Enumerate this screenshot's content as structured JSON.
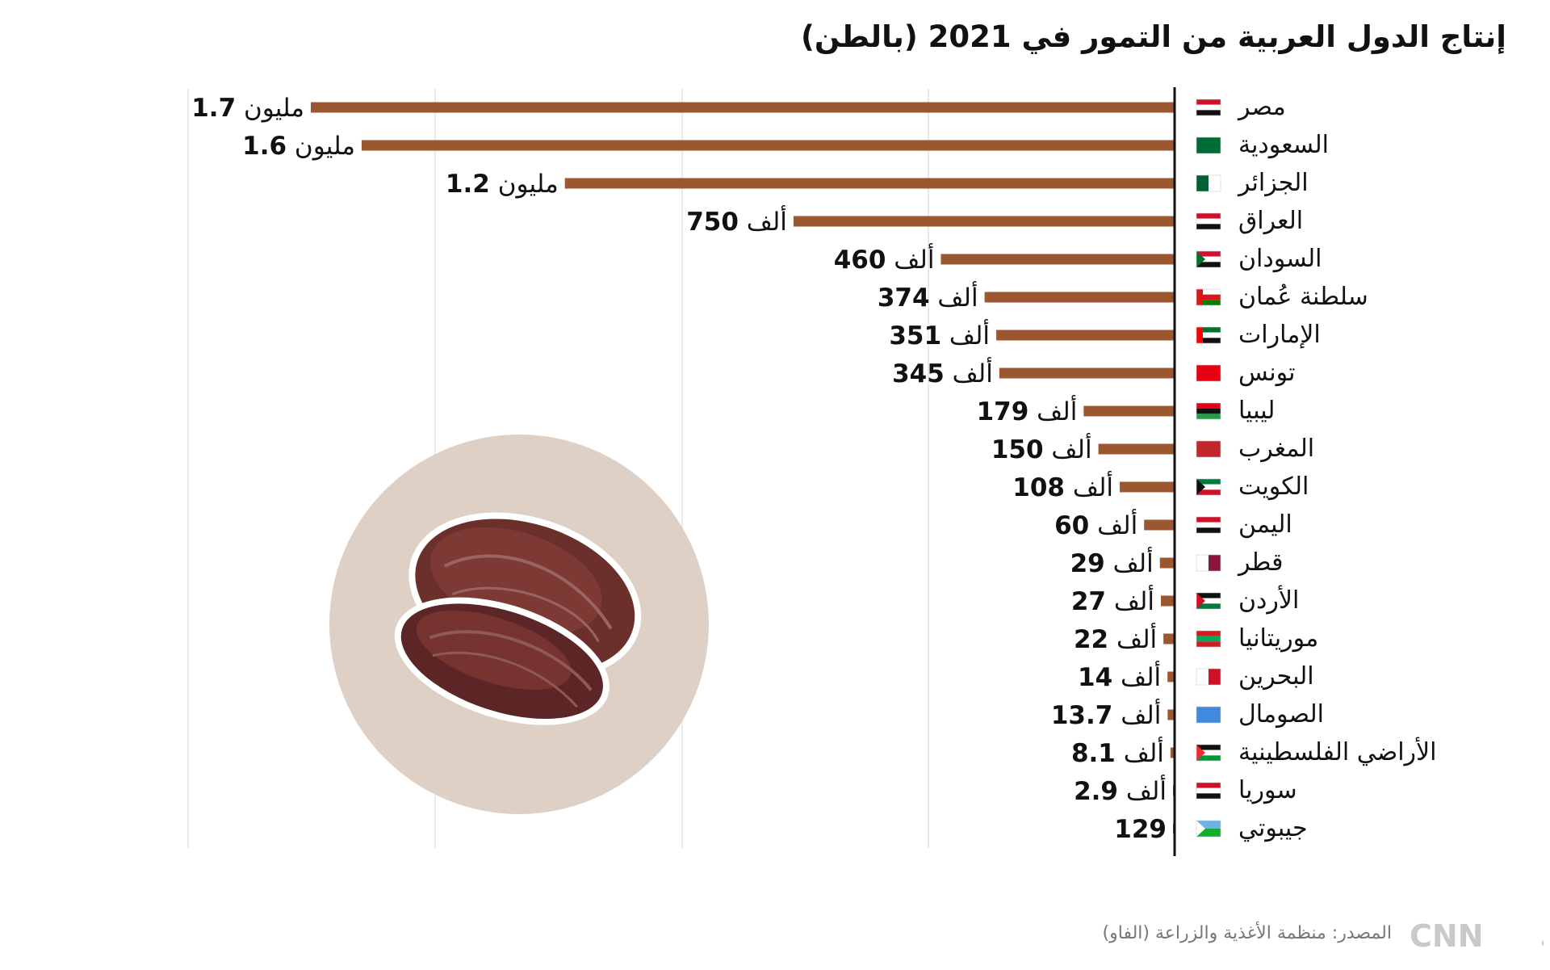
{
  "title": "إنتاج الدول العربية من التمور في 2021 (بالطن)",
  "source": "المصدر: منظمة الأغذية والزراعة (الفاو)",
  "logo_text": "CNN بالعربية",
  "colors": {
    "bar": "#9b5730",
    "axis": "#111111",
    "grid": "#e3e3e3",
    "circle": "#dfd0c6"
  },
  "chart_data": {
    "type": "bar",
    "orientation": "horizontal",
    "unit": "tonnes",
    "title": "إنتاج الدول العربية من التمور في 2021 (بالطن)",
    "xlim": [
      0,
      1700000
    ],
    "grid": true,
    "categories": [
      "مصر",
      "السعودية",
      "الجزائر",
      "العراق",
      "السودان",
      "سلطنة عُمان",
      "الإمارات",
      "تونس",
      "ليبيا",
      "المغرب",
      "الكويت",
      "اليمن",
      "قطر",
      "الأردن",
      "موريتانيا",
      "البحرين",
      "الصومال",
      "الأراضي الفلسطينية",
      "سوريا",
      "جيبوتي"
    ],
    "values": [
      1700000,
      1600000,
      1200000,
      750000,
      460000,
      374000,
      351000,
      345000,
      179000,
      150000,
      108000,
      60000,
      29000,
      27000,
      22000,
      14000,
      13700,
      8100,
      2900,
      129
    ],
    "value_labels": [
      {
        "num": "1.7",
        "unit": "مليون"
      },
      {
        "num": "1.6",
        "unit": "مليون"
      },
      {
        "num": "1.2",
        "unit": "مليون"
      },
      {
        "num": "750",
        "unit": "ألف"
      },
      {
        "num": "460",
        "unit": "ألف"
      },
      {
        "num": "374",
        "unit": "ألف"
      },
      {
        "num": "351",
        "unit": "ألف"
      },
      {
        "num": "345",
        "unit": "ألف"
      },
      {
        "num": "179",
        "unit": "ألف"
      },
      {
        "num": "150",
        "unit": "ألف"
      },
      {
        "num": "108",
        "unit": "ألف"
      },
      {
        "num": "60",
        "unit": "ألف"
      },
      {
        "num": "29",
        "unit": "ألف"
      },
      {
        "num": "27",
        "unit": "ألف"
      },
      {
        "num": "22",
        "unit": "ألف"
      },
      {
        "num": "14",
        "unit": "ألف"
      },
      {
        "num": "13.7",
        "unit": "ألف"
      },
      {
        "num": "8.1",
        "unit": "ألف"
      },
      {
        "num": "2.9",
        "unit": "ألف"
      },
      {
        "num": "129",
        "unit": ""
      }
    ]
  },
  "flags": [
    {
      "name": "egypt-flag",
      "type": "h",
      "stripes": [
        "#ce1126",
        "#ffffff",
        "#111111"
      ]
    },
    {
      "name": "saudi-flag",
      "type": "solid",
      "stripes": [
        "#006c35"
      ]
    },
    {
      "name": "algeria-flag",
      "type": "v",
      "stripes": [
        "#006233",
        "#ffffff"
      ]
    },
    {
      "name": "iraq-flag",
      "type": "h",
      "stripes": [
        "#ce1126",
        "#ffffff",
        "#111111"
      ]
    },
    {
      "name": "sudan-flag",
      "type": "h-tri",
      "stripes": [
        "#d21034",
        "#ffffff",
        "#111111"
      ],
      "tri": "#007229"
    },
    {
      "name": "oman-flag",
      "type": "h-bar",
      "stripes": [
        "#ffffff",
        "#db161b",
        "#008000"
      ],
      "tri": "#db161b"
    },
    {
      "name": "uae-flag",
      "type": "h-bar",
      "stripes": [
        "#00732f",
        "#ffffff",
        "#111111"
      ],
      "tri": "#ff0000"
    },
    {
      "name": "tunisia-flag",
      "type": "solid",
      "stripes": [
        "#e70013"
      ]
    },
    {
      "name": "libya-flag",
      "type": "h",
      "stripes": [
        "#e70013",
        "#111111",
        "#239e46"
      ]
    },
    {
      "name": "morocco-flag",
      "type": "solid",
      "stripes": [
        "#c1272d"
      ]
    },
    {
      "name": "kuwait-flag",
      "type": "h-tri",
      "stripes": [
        "#007a3d",
        "#ffffff",
        "#ce1126"
      ],
      "tri": "#111111"
    },
    {
      "name": "yemen-flag",
      "type": "h",
      "stripes": [
        "#ce1126",
        "#ffffff",
        "#111111"
      ]
    },
    {
      "name": "qatar-flag",
      "type": "v",
      "stripes": [
        "#ffffff",
        "#8a1538"
      ]
    },
    {
      "name": "jordan-flag",
      "type": "h-tri",
      "stripes": [
        "#111111",
        "#ffffff",
        "#007a3d"
      ],
      "tri": "#ce1126"
    },
    {
      "name": "mauritania-flag",
      "type": "h",
      "stripes": [
        "#d01c1f",
        "#00a95c",
        "#d01c1f"
      ]
    },
    {
      "name": "bahrain-flag",
      "type": "v",
      "stripes": [
        "#ffffff",
        "#ce1126"
      ]
    },
    {
      "name": "somalia-flag",
      "type": "solid",
      "stripes": [
        "#4189dd"
      ]
    },
    {
      "name": "palestine-flag",
      "type": "h-tri",
      "stripes": [
        "#111111",
        "#ffffff",
        "#009736"
      ],
      "tri": "#ee2a35"
    },
    {
      "name": "syria-flag",
      "type": "h",
      "stripes": [
        "#ce1126",
        "#ffffff",
        "#111111"
      ]
    },
    {
      "name": "djibouti-flag",
      "type": "h-tri",
      "stripes": [
        "#6ab2e7",
        "#12ad2b"
      ],
      "tri": "#ffffff"
    }
  ]
}
